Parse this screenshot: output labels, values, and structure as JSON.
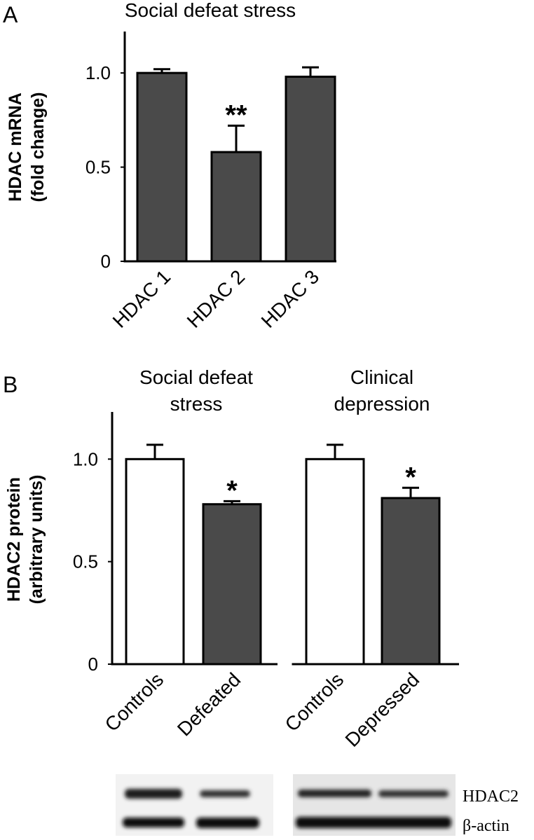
{
  "panel_labels": [
    "A",
    "B"
  ],
  "chart_data": [
    {
      "type": "bar",
      "title": [
        "Social defeat stress"
      ],
      "y_label": [
        "HDAC mRNA",
        "(fold change)"
      ],
      "categories": [
        "HDAC 1",
        "HDAC 2",
        "HDAC 3"
      ],
      "values": [
        1.0,
        0.58,
        0.98
      ],
      "errors": [
        0.02,
        0.14,
        0.05
      ],
      "colors": [
        "#4a4a4a",
        "#4a4a4a",
        "#4a4a4a"
      ],
      "annotations": [
        null,
        "**",
        null
      ],
      "ylim": [
        0,
        1.22
      ],
      "yticks": [
        0,
        0.5,
        {
          "value": 1,
          "label": "1.0"
        }
      ]
    },
    {
      "type": "bar",
      "title": [
        "Social defeat",
        "stress"
      ],
      "y_label": [
        "HDAC2 protein",
        "(arbitrary units)"
      ],
      "categories": [
        "Controls",
        "Defeated"
      ],
      "values": [
        1.0,
        0.78
      ],
      "errors": [
        0.07,
        0.015
      ],
      "colors": [
        "#ffffff",
        "#4a4a4a"
      ],
      "annotations": [
        null,
        "*"
      ],
      "ylim": [
        0,
        1.23
      ],
      "yticks": [
        0,
        0.5,
        {
          "value": 1,
          "label": "1.0"
        }
      ]
    },
    {
      "type": "bar",
      "title": [
        "Clinical",
        "depression"
      ],
      "categories": [
        "Controls",
        "Depressed"
      ],
      "values": [
        1.0,
        0.81
      ],
      "errors": [
        0.07,
        0.05
      ],
      "colors": [
        "#ffffff",
        "#4a4a4a"
      ],
      "annotations": [
        null,
        "*"
      ],
      "ylim": [
        0,
        1.23
      ]
    }
  ],
  "blot": {
    "labels": [
      "HDAC2",
      "β-actin"
    ]
  }
}
